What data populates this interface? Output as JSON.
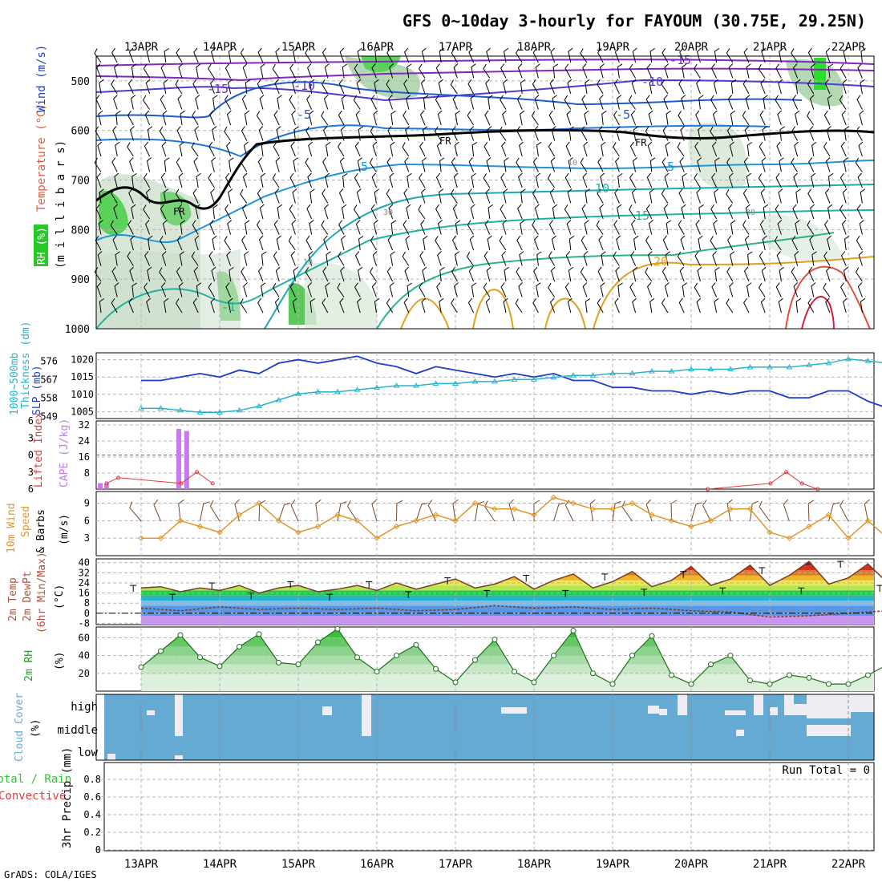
{
  "title": "GFS 0~10day 3-hourly for FAYOUM (30.75E, 29.25N)",
  "credit": "GrADS: COLA/IGES",
  "dates": [
    "13APR",
    "14APR",
    "15APR",
    "16APR",
    "17APR",
    "18APR",
    "19APR",
    "20APR",
    "21APR",
    "22APR"
  ],
  "colors": {
    "grid": "#b4b4b4",
    "slp": "#1e3cc8",
    "thk": "#28b4c8",
    "cape": "#c878f0",
    "li": "#e03c3c",
    "wind": "#e0962d",
    "barb": "#784628",
    "rh": "#28a028",
    "cloud": "#64aad2",
    "cloudhigh": "#f0ecf4",
    "temp_purple": "#8228be",
    "temp_blue": "#1e5ad2",
    "temp_cyan": "#1e96dc",
    "temp_teal": "#1eb4a0",
    "temp_orange": "#e1a01e",
    "temp_red": "#d21e3c"
  },
  "panels": {
    "upper": {
      "ylabels": [
        "RH (%)",
        "Temperature (°C)",
        "Wind (m/s)",
        "(m i l l i b a r s)"
      ],
      "yticks": [
        "500",
        "600",
        "700",
        "800",
        "900",
        "1000"
      ],
      "contour_labels": [
        "-15",
        "-15",
        "-10",
        "-10",
        "-5",
        "-5",
        "FR",
        "FR",
        "FR",
        "5",
        "5",
        "10",
        "15",
        "20",
        "-1",
        "30",
        "10",
        "30",
        "10"
      ]
    },
    "slp": {
      "ylabels": [
        "SLP (mb)",
        "Thickness (dm)",
        "1000~500mb"
      ],
      "slp_ticks": [
        "1020",
        "1015",
        "1010",
        "1005"
      ],
      "thk_ticks": [
        "576",
        "567",
        "558",
        "549"
      ]
    },
    "cape": {
      "ylabels": [
        "CAPE (J/kg)",
        "Lifted Index"
      ],
      "cape_ticks": [
        "32",
        "24",
        "16",
        "8"
      ],
      "li_ticks": [
        "-6",
        "-3",
        "0",
        "3",
        "6"
      ]
    },
    "wind10": {
      "ylabels": [
        "10m Wind",
        "Speed",
        "& Barbs",
        "(m/s)"
      ],
      "yticks": [
        "9",
        "6",
        "3"
      ]
    },
    "temp": {
      "ylabels": [
        "2m Temp",
        "2m DewPt",
        "(6hr Min/Max)",
        "(°C)"
      ],
      "yticks": [
        "40",
        "32",
        "24",
        "16",
        "8",
        "0",
        "-8"
      ]
    },
    "rh": {
      "ylabels": [
        "2m RH",
        "(%)"
      ],
      "yticks": [
        "60",
        "40",
        "20"
      ]
    },
    "cloud": {
      "ylabels": [
        "Cloud Cover",
        "(%)"
      ],
      "levels": [
        "high",
        "middle",
        "low"
      ]
    },
    "precip": {
      "ylabels": [
        "Total / Rain",
        "Convective",
        "3hr Precip (mm)"
      ],
      "yticks": [
        "0.8",
        "0.6",
        "0.4",
        "0.2",
        "0"
      ],
      "run_total": "Run Total = 0"
    }
  },
  "chart_data": [
    {
      "type": "line",
      "title": "SLP (mb)",
      "ylim": [
        1003,
        1022
      ],
      "x_days": [
        0,
        0.25,
        0.5,
        0.75,
        1,
        1.25,
        1.5,
        1.75,
        2,
        2.25,
        2.5,
        2.75,
        3,
        3.25,
        3.5,
        3.75,
        4,
        4.25,
        4.5,
        4.75,
        5,
        5.25,
        5.5,
        5.75,
        6,
        6.25,
        6.5,
        6.75,
        7,
        7.25,
        7.5,
        7.75,
        8,
        8.25,
        8.5,
        8.75,
        9,
        9.25,
        9.5,
        9.75
      ],
      "values": [
        1014,
        1014,
        1015,
        1016,
        1015,
        1017,
        1016,
        1019,
        1020,
        1019,
        1020,
        1021,
        1019,
        1018,
        1016,
        1018,
        1017,
        1016,
        1015,
        1016,
        1015,
        1016,
        1014,
        1014,
        1012,
        1012,
        1011,
        1011,
        1010,
        1011,
        1010,
        1011,
        1011,
        1009,
        1009,
        1011,
        1011,
        1008,
        1006,
        1010
      ]
    },
    {
      "type": "line",
      "title": "Thickness (dm)",
      "ylim": [
        548,
        580
      ],
      "x_days": [
        0,
        0.25,
        0.5,
        0.75,
        1,
        1.25,
        1.5,
        1.75,
        2,
        2.25,
        2.5,
        2.75,
        3,
        3.25,
        3.5,
        3.75,
        4,
        4.25,
        4.5,
        4.75,
        5,
        5.25,
        5.5,
        5.75,
        6,
        6.25,
        6.5,
        6.75,
        7,
        7.25,
        7.5,
        7.75,
        8,
        8.25,
        8.5,
        8.75,
        9,
        9.25,
        9.5,
        9.75
      ],
      "values": [
        553,
        553,
        552,
        551,
        551,
        552,
        554,
        557,
        560,
        561,
        561,
        562,
        563,
        564,
        564,
        565,
        565,
        566,
        566,
        567,
        567,
        568,
        569,
        569,
        570,
        570,
        571,
        571,
        572,
        572,
        572,
        573,
        573,
        573,
        574,
        575,
        577,
        576,
        575,
        574
      ]
    },
    {
      "type": "bar",
      "title": "CAPE (J/kg)",
      "ylim": [
        0,
        32
      ],
      "x_days": [
        0,
        0.08,
        1.0,
        1.1
      ],
      "values": [
        3,
        3,
        30,
        29
      ]
    },
    {
      "type": "line",
      "title": "Lifted Index",
      "ylim": [
        -6,
        6
      ],
      "points": [
        [
          0.05,
          5
        ],
        [
          0.2,
          4
        ],
        [
          1.0,
          5
        ],
        [
          1.2,
          3
        ],
        [
          1.4,
          5
        ],
        [
          7.7,
          6
        ],
        [
          8.5,
          5
        ],
        [
          8.7,
          3
        ],
        [
          8.9,
          5
        ],
        [
          9.1,
          6
        ]
      ]
    },
    {
      "type": "line",
      "title": "10m Wind Speed (m/s)",
      "ylim": [
        0,
        11
      ],
      "x_days": [
        0,
        0.25,
        0.5,
        0.75,
        1,
        1.25,
        1.5,
        1.75,
        2,
        2.25,
        2.5,
        2.75,
        3,
        3.25,
        3.5,
        3.75,
        4,
        4.25,
        4.5,
        4.75,
        5,
        5.25,
        5.5,
        5.75,
        6,
        6.25,
        6.5,
        6.75,
        7,
        7.25,
        7.5,
        7.75,
        8,
        8.25,
        8.5,
        8.75,
        9,
        9.25,
        9.5,
        9.75
      ],
      "values": [
        3,
        3,
        6,
        5,
        4,
        7,
        9,
        6,
        4,
        5,
        7,
        6,
        3,
        5,
        6,
        7,
        6,
        9,
        8,
        8,
        7,
        10,
        9,
        8,
        8,
        9,
        7,
        6,
        5,
        6,
        8,
        8,
        4,
        3,
        5,
        7,
        3,
        6,
        3,
        3
      ]
    },
    {
      "type": "area",
      "title": "2m Temp (°C)",
      "ylim": [
        -9,
        43
      ],
      "x_days": [
        0,
        0.25,
        0.5,
        0.75,
        1,
        1.25,
        1.5,
        1.75,
        2,
        2.25,
        2.5,
        2.75,
        3,
        3.25,
        3.5,
        3.75,
        4,
        4.25,
        4.5,
        4.75,
        5,
        5.25,
        5.5,
        5.75,
        6,
        6.25,
        6.5,
        6.75,
        7,
        7.25,
        7.5,
        7.75,
        8,
        8.25,
        8.5,
        8.75,
        9,
        9.25,
        9.5,
        9.75
      ],
      "values": [
        20,
        21,
        17,
        20,
        18,
        22,
        16,
        20,
        22,
        17,
        19,
        22,
        18,
        24,
        19,
        23,
        27,
        20,
        23,
        29,
        19,
        26,
        31,
        20,
        25,
        33,
        21,
        26,
        37,
        22,
        27,
        38,
        22,
        30,
        41,
        23,
        28,
        39,
        24,
        22
      ],
      "maxmin_ticks": [
        22,
        15,
        24,
        16,
        25,
        15,
        25,
        17,
        28,
        18,
        30,
        18,
        31,
        19,
        33,
        20,
        36,
        20,
        41,
        22
      ]
    },
    {
      "type": "line",
      "title": "2m DewPt (°C)",
      "ylim": [
        -9,
        43
      ],
      "x_days": [
        0,
        0.5,
        1,
        1.5,
        2,
        2.5,
        3,
        3.5,
        4,
        4.5,
        5,
        5.5,
        6,
        6.5,
        7,
        7.5,
        8,
        8.5,
        9,
        9.5,
        9.75
      ],
      "values": [
        4,
        2,
        5,
        3,
        4,
        3,
        4,
        2,
        3,
        6,
        4,
        5,
        3,
        4,
        2,
        1,
        -3,
        -2,
        0,
        2,
        3
      ]
    },
    {
      "type": "area",
      "title": "2m RH (%)",
      "ylim": [
        0,
        72
      ],
      "x_days": [
        0,
        0.25,
        0.5,
        0.75,
        1,
        1.25,
        1.5,
        1.75,
        2,
        2.25,
        2.5,
        2.75,
        3,
        3.25,
        3.5,
        3.75,
        4,
        4.25,
        4.5,
        4.75,
        5,
        5.25,
        5.5,
        5.75,
        6,
        6.25,
        6.5,
        6.75,
        7,
        7.25,
        7.5,
        7.75,
        8,
        8.25,
        8.5,
        8.75,
        9,
        9.25,
        9.5,
        9.75
      ],
      "values": [
        27,
        45,
        63,
        38,
        28,
        50,
        64,
        32,
        30,
        55,
        70,
        38,
        22,
        40,
        52,
        25,
        10,
        35,
        58,
        22,
        10,
        40,
        68,
        20,
        8,
        40,
        62,
        18,
        8,
        30,
        40,
        12,
        8,
        18,
        15,
        8,
        8,
        18,
        30,
        28
      ]
    },
    {
      "type": "heatmap",
      "title": "Cloud Cover (%)",
      "categories": [
        "high",
        "middle",
        "low"
      ],
      "note": "mostly clear (blue); scattered high cloud 20APR-22APR; low cloud near 13APR"
    },
    {
      "type": "line",
      "title": "3hr Precip (mm)",
      "ylim": [
        0,
        1
      ],
      "values": [],
      "annotation": "Run Total = 0"
    }
  ]
}
